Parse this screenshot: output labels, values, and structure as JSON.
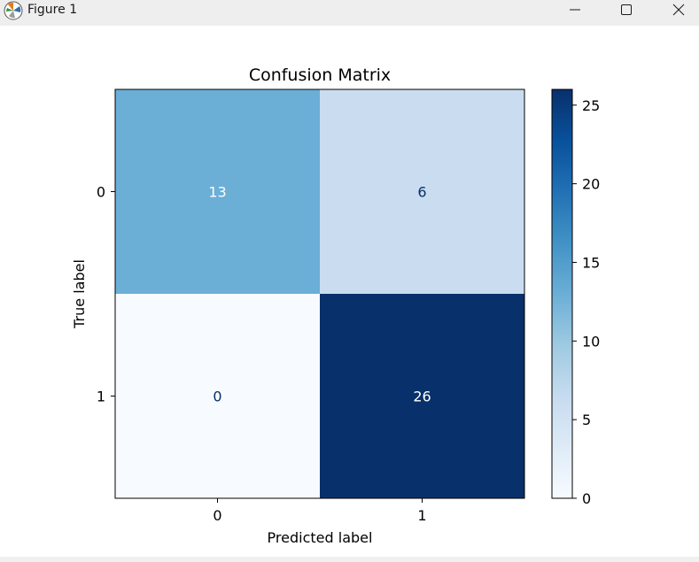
{
  "window": {
    "title": "Figure 1",
    "icon": "matplotlib-logo-icon",
    "controls": {
      "minimize": "minimize-icon",
      "maximize": "maximize-icon",
      "close": "close-icon"
    },
    "colors": {
      "titlebar": "#eeeeee",
      "background": "#ffffff"
    }
  },
  "chart_data": {
    "type": "heatmap",
    "title": "Confusion Matrix",
    "xlabel": "Predicted label",
    "ylabel": "True label",
    "x_categories": [
      "0",
      "1"
    ],
    "y_categories": [
      "0",
      "1"
    ],
    "values": [
      [
        13,
        6
      ],
      [
        0,
        26
      ]
    ],
    "colormap": "Blues",
    "vmin": 0,
    "vmax": 26,
    "colorbar_ticks": [
      "0",
      "5",
      "10",
      "15",
      "20",
      "25"
    ],
    "grid": false
  }
}
